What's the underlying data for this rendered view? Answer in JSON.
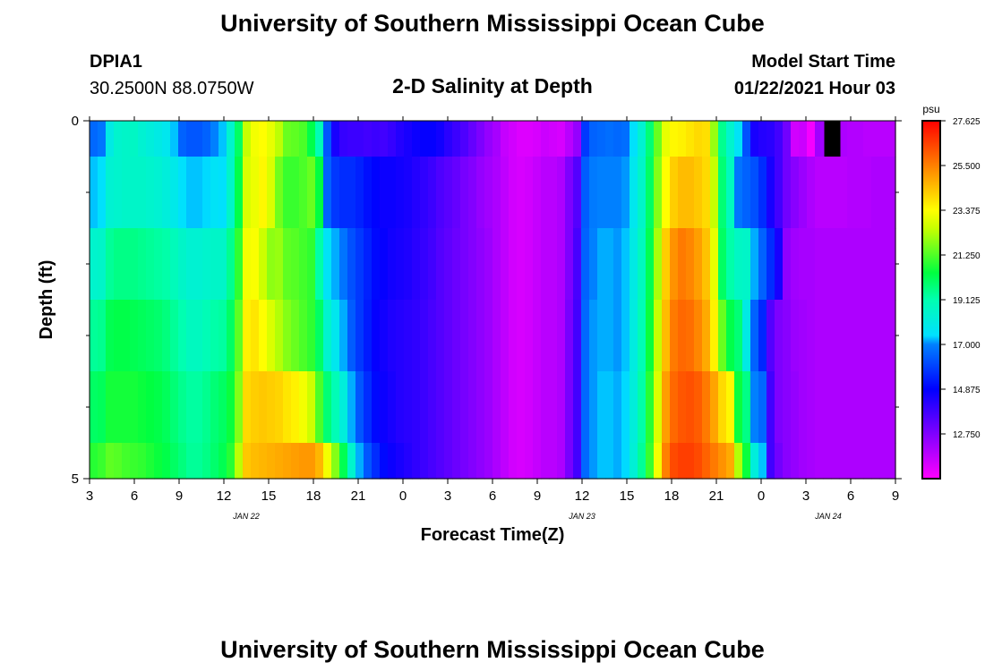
{
  "header": {
    "title": "University of Southern Mississippi Ocean Cube",
    "station_id": "DPIA1",
    "station_coords": "30.2500N 88.0750W",
    "model_start_label": "Model Start Time",
    "model_start_value": "01/22/2021 Hour 03",
    "footer_title": "University of Southern Mississippi Ocean Cube"
  },
  "chart_data": {
    "type": "heatmap",
    "title": "2-D Salinity at Depth",
    "xlabel": "Forecast Time(Z)",
    "ylabel": "Depth (ft)",
    "units": "psu",
    "x_tick_labels": [
      "3",
      "6",
      "9",
      "12",
      "15",
      "18",
      "21",
      "0",
      "3",
      "6",
      "9",
      "12",
      "15",
      "18",
      "21",
      "0",
      "3",
      "6",
      "9"
    ],
    "x_range_hours": [
      0,
      54
    ],
    "date_labels": [
      {
        "label": "JAN 22",
        "hour": 10.5
      },
      {
        "label": "JAN 23",
        "hour": 33
      },
      {
        "label": "JAN 24",
        "hour": 49.5
      }
    ],
    "y_tick_labels": [
      "0",
      "5"
    ],
    "y_range": [
      0,
      5
    ],
    "y_minor_ticks": [
      1,
      2,
      3,
      4
    ],
    "depth_bands": [
      0,
      0.5,
      1.5,
      2.5,
      3.5,
      4.5,
      5
    ],
    "colorbar": {
      "min": 10.625,
      "max": 27.625,
      "tick_values": [
        27.625,
        25.5,
        23.375,
        21.25,
        19.125,
        17.0,
        14.875,
        12.75
      ],
      "tick_labels": [
        "27.625",
        "25.500",
        "23.375",
        "21.250",
        "19.125",
        "17.000",
        "14.875",
        "12.750"
      ]
    },
    "salinity_psu": [
      [
        16.6,
        16.8,
        18.0,
        18.5,
        18.6,
        18.7,
        18.4,
        18.2,
        18.0,
        17.8,
        17.3,
        16.5,
        16.3,
        16.3,
        16.5,
        17.0,
        17.3,
        18.5,
        20.0,
        22.5,
        23.2,
        23.4,
        23.0,
        22.4,
        21.5,
        21.4,
        21.2,
        20.3,
        19.0,
        16.3,
        14.5,
        14.0,
        13.9,
        13.9,
        13.8,
        13.9,
        13.8,
        14.0,
        14.3,
        14.5,
        14.7,
        14.8,
        14.8,
        14.6,
        14.2,
        13.9,
        13.6,
        13.2,
        12.8,
        12.4,
        12.1,
        11.6,
        11.4,
        11.2,
        11.2,
        11.3,
        11.5,
        11.4,
        11.3,
        11.8,
        12.4,
        15.8,
        16.5,
        16.6,
        16.7,
        16.6,
        16.7,
        17.5,
        18.4,
        19.8,
        21.5,
        23.0,
        23.5,
        23.6,
        23.8,
        24.0,
        23.9,
        22.0,
        19.5,
        18.5,
        17.6,
        16.2,
        14.5,
        14.3,
        14.2,
        13.8,
        13.0,
        11.4,
        11.5,
        10.8,
        12.2,
        12.1,
        12.0,
        12.0,
        11.9,
        11.9,
        11.8,
        11.8,
        11.8,
        11.8
      ],
      [
        17.3,
        17.5,
        18.4,
        18.5,
        18.6,
        18.6,
        18.6,
        18.5,
        18.4,
        18.2,
        17.9,
        17.5,
        17.3,
        17.3,
        17.4,
        17.6,
        17.5,
        18.6,
        20.3,
        22.8,
        23.1,
        23.5,
        22.8,
        21.6,
        21.0,
        21.0,
        21.2,
        21.5,
        20.4,
        16.5,
        15.8,
        15.6,
        15.6,
        15.4,
        15.1,
        14.9,
        14.7,
        14.7,
        14.6,
        14.5,
        14.3,
        14.1,
        13.9,
        13.6,
        13.4,
        13.2,
        12.9,
        12.7,
        12.4,
        12.2,
        12.0,
        11.7,
        11.4,
        11.3,
        11.4,
        11.6,
        11.8,
        11.8,
        12.0,
        12.8,
        13.5,
        16.4,
        16.9,
        17.0,
        17.0,
        17.0,
        17.1,
        17.8,
        18.6,
        20.0,
        21.8,
        23.4,
        24.2,
        24.5,
        24.5,
        24.3,
        24.0,
        22.5,
        19.8,
        18.8,
        16.8,
        16.5,
        16.2,
        15.6,
        14.5,
        13.8,
        13.0,
        12.6,
        12.3,
        12.0,
        11.8,
        11.8,
        11.8,
        11.8,
        11.9,
        11.9,
        11.9,
        12.0,
        12.0,
        12.0
      ],
      [
        18.5,
        18.6,
        19.4,
        19.6,
        19.6,
        19.6,
        19.5,
        19.4,
        19.3,
        19.2,
        18.9,
        18.6,
        18.4,
        18.4,
        18.5,
        18.6,
        18.6,
        19.5,
        20.9,
        23.2,
        23.3,
        22.6,
        21.9,
        22.0,
        21.4,
        21.3,
        21.1,
        20.9,
        19.2,
        17.6,
        17.2,
        16.8,
        16.2,
        15.8,
        15.4,
        15.0,
        14.8,
        14.6,
        14.5,
        14.4,
        14.2,
        14.0,
        13.8,
        13.5,
        13.3,
        13.1,
        12.9,
        12.7,
        12.5,
        12.3,
        12.0,
        11.7,
        11.4,
        11.3,
        11.4,
        11.6,
        11.8,
        11.8,
        12.0,
        12.8,
        13.7,
        16.5,
        17.0,
        17.2,
        17.2,
        17.1,
        17.3,
        18.0,
        18.8,
        20.2,
        22.2,
        24.2,
        25.2,
        25.6,
        25.4,
        25.0,
        24.4,
        23.0,
        20.0,
        19.2,
        18.7,
        18.6,
        17.2,
        16.5,
        15.6,
        14.5,
        12.5,
        12.2,
        12.1,
        12.1,
        12.0,
        12.0,
        12.0,
        12.0,
        12.0,
        12.0,
        12.0,
        12.0,
        12.0,
        12.0
      ],
      [
        19.4,
        19.5,
        20.2,
        20.3,
        20.3,
        20.2,
        20.1,
        20.0,
        19.9,
        19.7,
        19.4,
        19.1,
        18.8,
        18.8,
        19.0,
        19.2,
        19.3,
        20.0,
        21.4,
        23.6,
        23.8,
        23.4,
        22.8,
        22.3,
        21.8,
        21.5,
        21.2,
        20.9,
        20.0,
        18.5,
        17.8,
        17.2,
        16.4,
        15.8,
        15.3,
        14.8,
        14.6,
        14.4,
        14.3,
        14.2,
        14.1,
        13.9,
        13.7,
        13.5,
        13.3,
        13.1,
        12.9,
        12.7,
        12.5,
        12.3,
        12.0,
        11.7,
        11.4,
        11.3,
        11.4,
        11.6,
        11.8,
        11.8,
        12.0,
        12.9,
        13.8,
        16.6,
        17.1,
        17.2,
        17.2,
        17.1,
        17.3,
        18.1,
        19.0,
        20.5,
        22.5,
        24.5,
        25.6,
        25.9,
        25.8,
        25.4,
        24.8,
        23.6,
        21.5,
        20.3,
        19.8,
        18.0,
        16.5,
        15.5,
        13.5,
        12.8,
        12.6,
        12.3,
        12.2,
        12.1,
        12.0,
        12.0,
        12.0,
        12.0,
        12.0,
        12.0,
        12.0,
        12.0,
        12.0,
        12.0
      ],
      [
        20.0,
        20.1,
        20.6,
        20.6,
        20.6,
        20.6,
        20.5,
        20.4,
        20.3,
        20.1,
        19.8,
        19.5,
        19.3,
        19.3,
        19.5,
        19.8,
        20.0,
        20.5,
        21.8,
        24.0,
        24.2,
        24.3,
        24.2,
        24.1,
        23.8,
        23.6,
        23.2,
        22.6,
        21.2,
        19.8,
        19.0,
        18.2,
        17.2,
        16.3,
        15.6,
        15.0,
        14.7,
        14.5,
        14.3,
        14.2,
        14.1,
        13.9,
        13.7,
        13.5,
        13.3,
        13.1,
        12.9,
        12.7,
        12.5,
        12.3,
        12.0,
        11.7,
        11.4,
        11.3,
        11.4,
        11.6,
        11.8,
        11.8,
        12.0,
        12.9,
        13.8,
        16.6,
        17.1,
        17.3,
        17.3,
        17.2,
        17.4,
        18.2,
        19.2,
        20.8,
        22.8,
        25.0,
        25.9,
        26.2,
        26.3,
        26.1,
        25.6,
        24.9,
        24.0,
        23.5,
        20.5,
        19.6,
        17.0,
        16.6,
        13.8,
        12.8,
        12.6,
        12.4,
        12.2,
        12.1,
        12.0,
        12.0,
        12.0,
        12.0,
        12.0,
        12.0,
        12.0,
        12.0,
        12.0,
        12.0
      ],
      [
        20.8,
        21.0,
        21.4,
        21.3,
        21.1,
        21.0,
        20.9,
        20.7,
        20.5,
        20.3,
        20.0,
        19.7,
        19.4,
        19.4,
        19.6,
        19.9,
        20.2,
        20.8,
        22.4,
        24.3,
        24.5,
        24.6,
        24.7,
        24.8,
        24.9,
        25.0,
        25.1,
        25.1,
        24.6,
        23.2,
        21.8,
        20.2,
        18.5,
        17.2,
        16.3,
        15.6,
        15.0,
        14.7,
        14.5,
        14.3,
        14.1,
        13.9,
        13.7,
        13.5,
        13.3,
        13.1,
        12.9,
        12.7,
        12.5,
        12.3,
        12.0,
        11.7,
        11.4,
        11.3,
        11.4,
        11.6,
        11.8,
        11.8,
        12.0,
        12.9,
        13.8,
        16.6,
        17.1,
        17.3,
        17.3,
        17.2,
        17.4,
        18.3,
        19.4,
        21.0,
        23.2,
        25.5,
        26.4,
        26.6,
        26.6,
        26.4,
        26.0,
        25.6,
        25.2,
        24.8,
        22.3,
        20.5,
        18.2,
        17.3,
        13.8,
        13.0,
        12.6,
        12.4,
        12.2,
        12.1,
        12.0,
        12.0,
        12.0,
        12.0,
        12.0,
        12.0,
        12.0,
        12.0,
        12.0,
        12.0
      ]
    ],
    "missing_cell": {
      "depth_band": 0,
      "hour": 49.5
    }
  }
}
